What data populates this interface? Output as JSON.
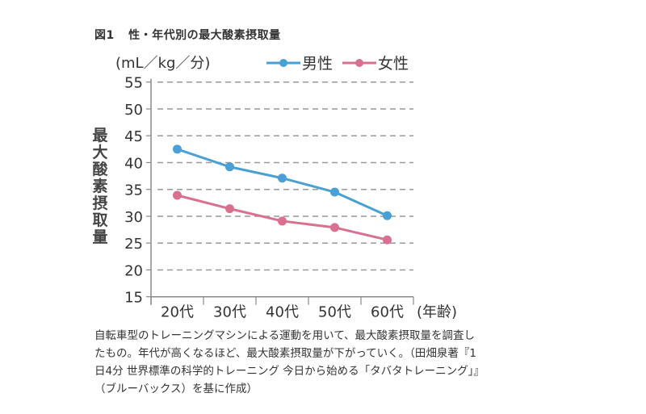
{
  "figure": {
    "number": "図1",
    "title": "性・年代別の最大酸素摂取量"
  },
  "caption": "自転車型のトレーニングマシンによる運動を用いて、最大酸素摂取量を調査したもの。年代が高くなるほど、最大酸素摂取量が下がっていく。（田畑泉著『1日4分 世界標準の科学的トレーニング 今日から始める「タバタトレーニング」』（ブルーバックス）を基に作成）",
  "chart_data": {
    "type": "line",
    "title": "性・年代別の最大酸素摂取量",
    "unit_label": "(mL／kg／分)",
    "ylabel": "最大酸素摂取量",
    "xlabel": "(年齢)",
    "categories": [
      "20代",
      "30代",
      "40代",
      "50代",
      "60代"
    ],
    "ylim": [
      15,
      55
    ],
    "yticks": [
      15,
      20,
      25,
      30,
      35,
      40,
      45,
      50,
      55
    ],
    "grid": "horizontal-dashed",
    "legend_position": "top-right",
    "series": [
      {
        "name": "男性",
        "color": "#4a9fd4",
        "values": [
          42.5,
          39.2,
          37.1,
          34.5,
          30.1
        ]
      },
      {
        "name": "女性",
        "color": "#d9708f",
        "values": [
          33.9,
          31.4,
          29.1,
          27.9,
          25.6
        ]
      }
    ]
  }
}
